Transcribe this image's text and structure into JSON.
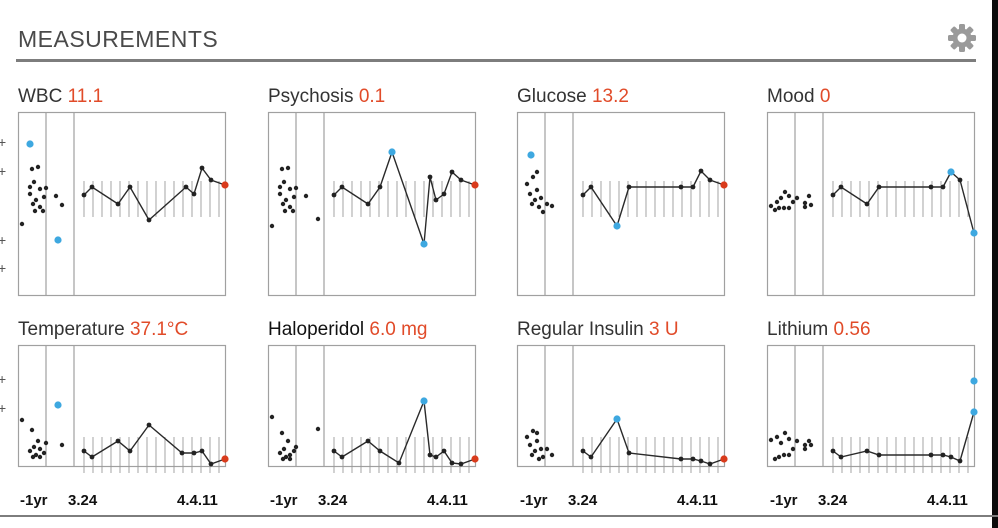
{
  "header": {
    "title": "MEASUREMENTS",
    "settings_icon": "gear-icon"
  },
  "colors": {
    "value": "#e14b29",
    "highlight": "#3ea8e0",
    "last_point": "#d93b1c",
    "point": "#222222",
    "frame": "#a0a0a0"
  },
  "panels": [
    {
      "name": "WBC",
      "value": "11.1"
    },
    {
      "name": "Psychosis",
      "value": "0.1"
    },
    {
      "name": "Glucose",
      "value": "13.2"
    },
    {
      "name": "Mood",
      "value": "0"
    },
    {
      "name": "Temperature",
      "value": "37.1°C"
    },
    {
      "name": "Haloperidol",
      "value": "6.0 mg"
    },
    {
      "name": "Regular Insulin",
      "value": "3 U"
    },
    {
      "name": "Lithium",
      "value": "0.56"
    }
  ],
  "xaxis": {
    "yr": "-1yr",
    "start": "3.24",
    "end": "4.4.11"
  },
  "tick_glyph": "+"
}
